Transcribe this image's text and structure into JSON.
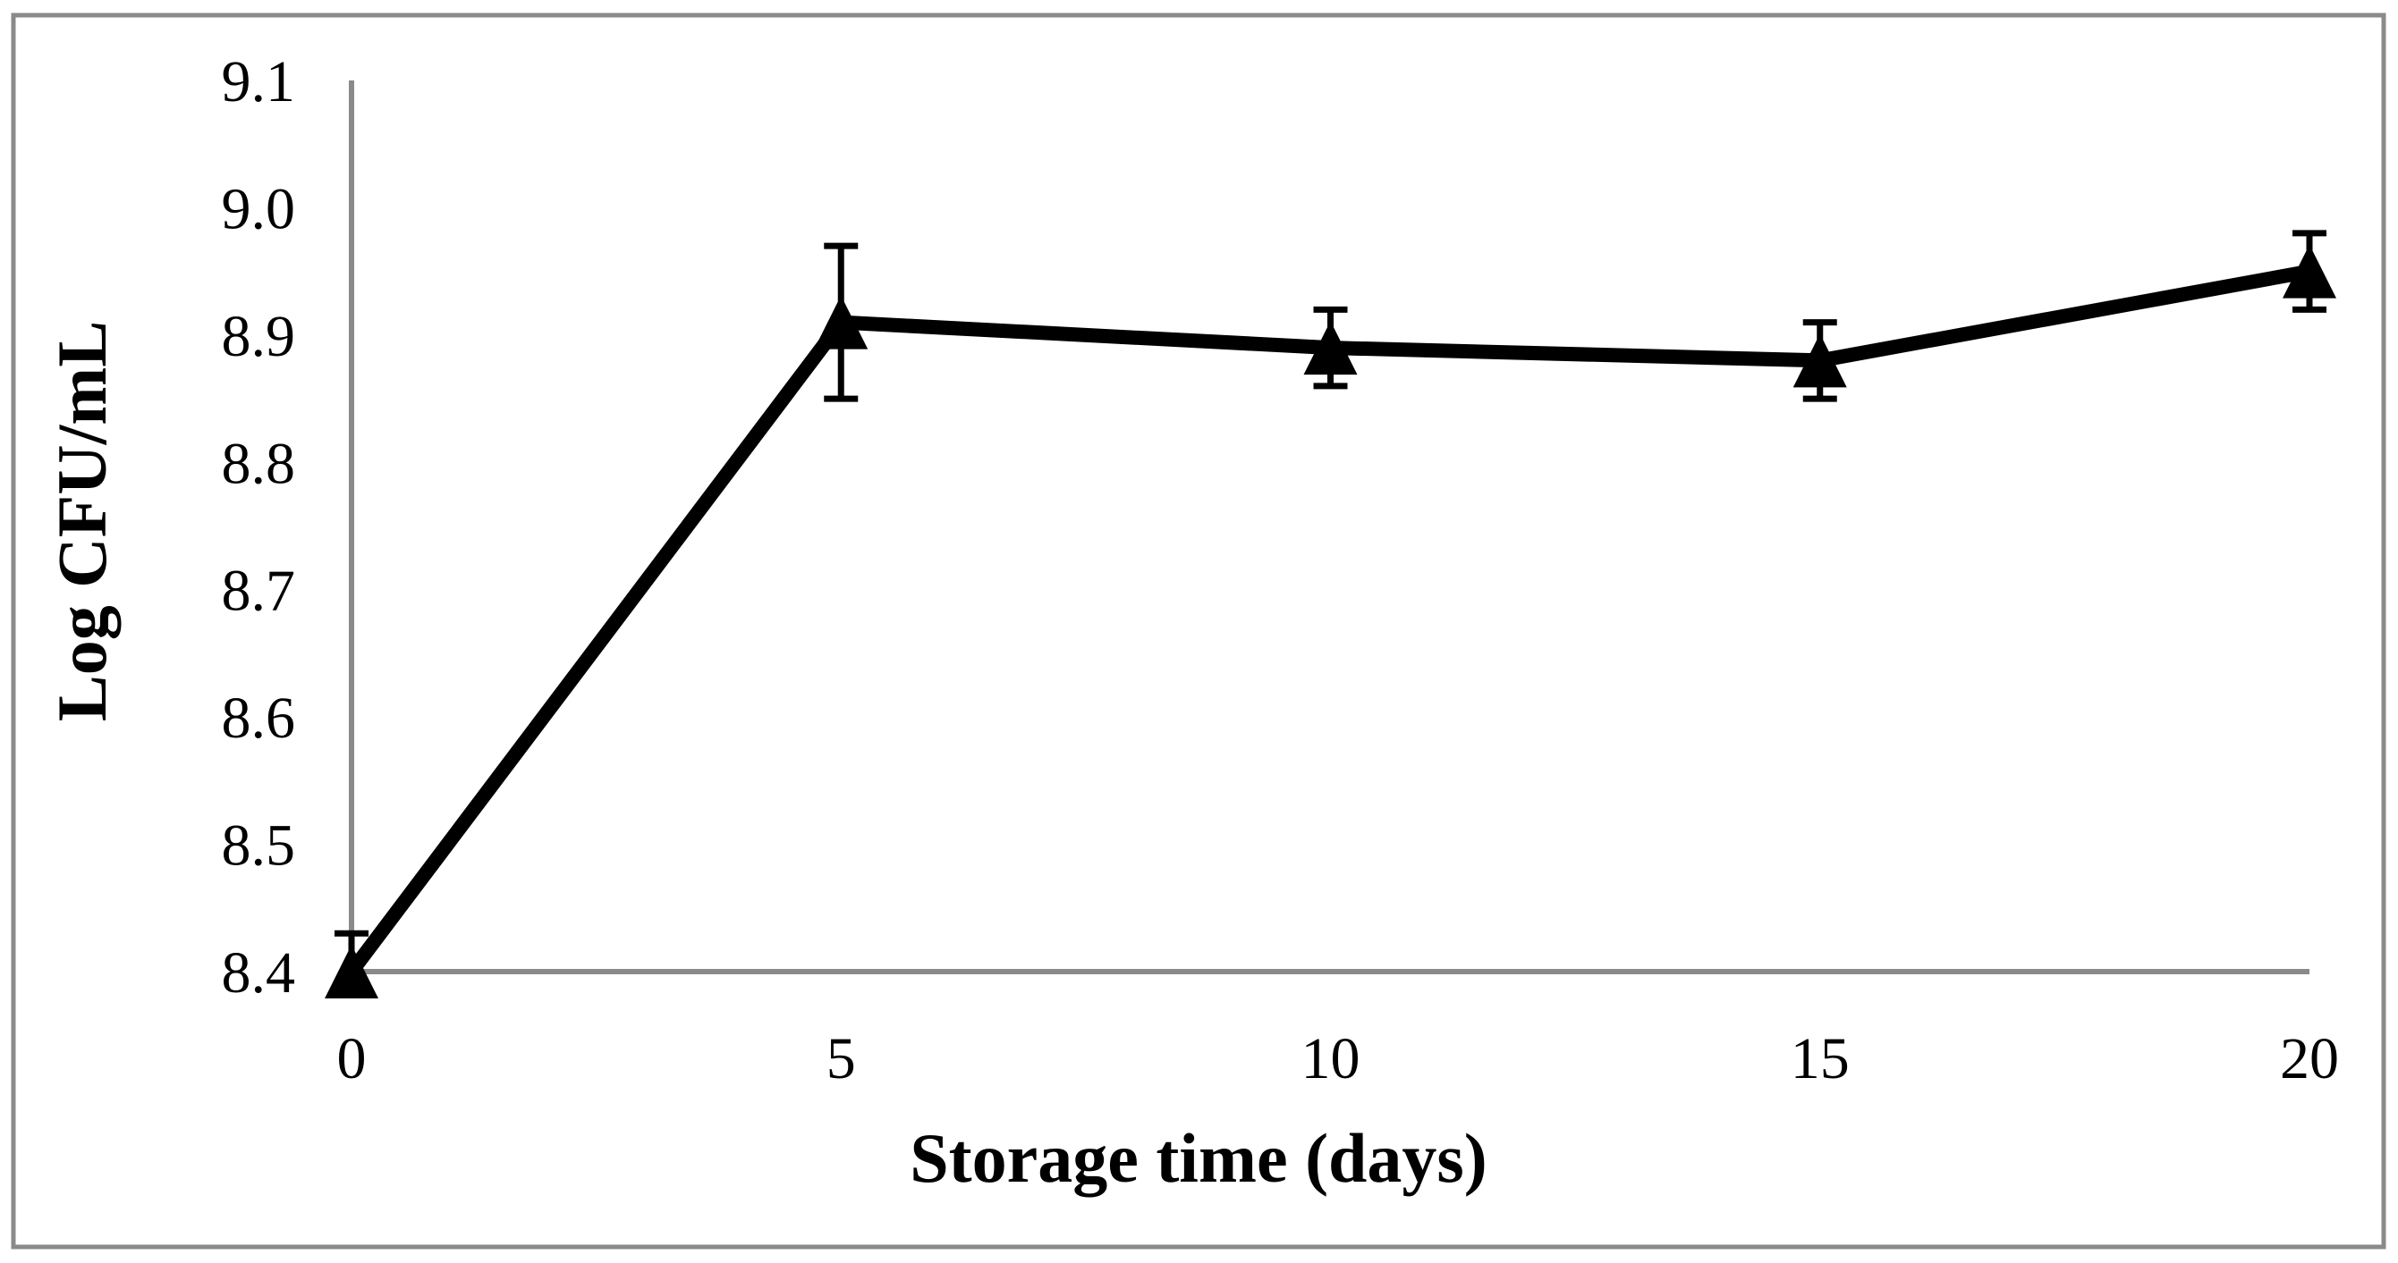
{
  "figure": {
    "background_color": "#ffffff",
    "border_color": "#8a8a8a",
    "line_color": "#000000",
    "axis_color": "#8a8a8a",
    "marker": "triangle"
  },
  "chart_data": {
    "type": "line",
    "title": "",
    "xlabel": "Storage time (days)",
    "ylabel": "Log CFU/mL",
    "x": [
      0,
      5,
      10,
      15,
      20
    ],
    "series": [
      {
        "name": "Log CFU/mL",
        "values": [
          8.4,
          8.91,
          8.89,
          8.88,
          8.95
        ],
        "err_plus": [
          0.03,
          0.06,
          0.03,
          0.03,
          0.03
        ],
        "err_minus": [
          0,
          0.06,
          0.03,
          0.03,
          0.03
        ]
      }
    ],
    "xticks": [
      0,
      5,
      10,
      15,
      20
    ],
    "yticks": [
      8.4,
      8.5,
      8.6,
      8.7,
      8.8,
      8.9,
      9.0,
      9.1
    ],
    "xlim": [
      0,
      20
    ],
    "ylim": [
      8.4,
      9.1
    ],
    "grid": false,
    "legend": "none"
  }
}
